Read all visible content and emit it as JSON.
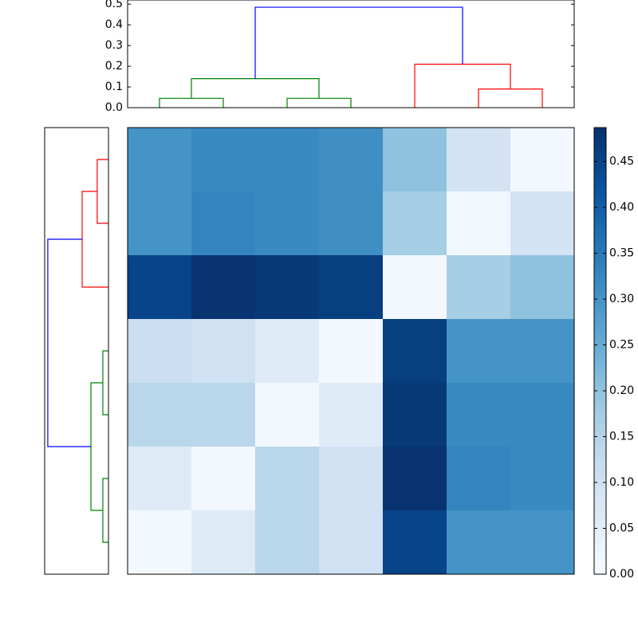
{
  "chart_data": [
    {
      "type": "dendrogram",
      "orientation": "top",
      "xlim": [
        0,
        70
      ],
      "ylim": [
        0,
        0.52
      ],
      "yticks": [
        {
          "value": 0,
          "label": "0.0"
        },
        0.1,
        0.2,
        0.3,
        0.4,
        0.5
      ],
      "links": [
        {
          "color": "#008000",
          "icoord": [
            5,
            5,
            15,
            15
          ],
          "dcoord": [
            0,
            0.045,
            0.045,
            0
          ]
        },
        {
          "color": "#008000",
          "icoord": [
            25,
            25,
            35,
            35
          ],
          "dcoord": [
            0,
            0.045,
            0.045,
            0
          ]
        },
        {
          "color": "#008000",
          "icoord": [
            10,
            10,
            30,
            30
          ],
          "dcoord": [
            0.045,
            0.14,
            0.14,
            0.045
          ]
        },
        {
          "color": "#ff0000",
          "icoord": [
            55,
            55,
            65,
            65
          ],
          "dcoord": [
            0,
            0.09,
            0.09,
            0
          ]
        },
        {
          "color": "#ff0000",
          "icoord": [
            45,
            45,
            60,
            60
          ],
          "dcoord": [
            0,
            0.21,
            0.21,
            0.09
          ]
        },
        {
          "color": "#0000ff",
          "icoord": [
            20,
            20,
            52.5,
            52.5
          ],
          "dcoord": [
            0.14,
            0.485,
            0.485,
            0.21
          ]
        }
      ]
    },
    {
      "type": "dendrogram",
      "orientation": "left",
      "xlim": [
        0.51,
        0
      ],
      "ylim": [
        70,
        0
      ],
      "links": [
        {
          "color": "#ff0000",
          "icoord": [
            5,
            5,
            15,
            15
          ],
          "dcoord": [
            0,
            0.09,
            0.09,
            0
          ]
        },
        {
          "color": "#ff0000",
          "icoord": [
            10,
            10,
            25,
            25
          ],
          "dcoord": [
            0.09,
            0.21,
            0.21,
            0
          ]
        },
        {
          "color": "#008000",
          "icoord": [
            35,
            35,
            45,
            45
          ],
          "dcoord": [
            0,
            0.045,
            0.045,
            0
          ]
        },
        {
          "color": "#008000",
          "icoord": [
            55,
            55,
            65,
            65
          ],
          "dcoord": [
            0,
            0.045,
            0.045,
            0
          ]
        },
        {
          "color": "#008000",
          "icoord": [
            40,
            40,
            60,
            60
          ],
          "dcoord": [
            0.045,
            0.14,
            0.14,
            0.045
          ]
        },
        {
          "color": "#0000ff",
          "icoord": [
            17.5,
            17.5,
            50,
            50
          ],
          "dcoord": [
            0.21,
            0.485,
            0.485,
            0.14
          ]
        }
      ]
    },
    {
      "type": "heatmap",
      "colormap": "Blues",
      "clim": [
        0,
        0.487
      ],
      "colorbar_ticks": [
        {
          "value": 0,
          "label": "0.00"
        },
        0.05,
        {
          "value": 0.1,
          "label": "0.10"
        },
        0.15,
        {
          "value": 0.2,
          "label": "0.20"
        },
        0.25,
        {
          "value": 0.3,
          "label": "0.30"
        },
        0.35,
        {
          "value": 0.4,
          "label": "0.40"
        },
        0.45
      ],
      "values": [
        [
          0.3,
          0.32,
          0.32,
          0.31,
          0.2,
          0.09,
          0.01
        ],
        [
          0.3,
          0.33,
          0.32,
          0.31,
          0.17,
          0.01,
          0.09
        ],
        [
          0.45,
          0.48,
          0.47,
          0.46,
          0.01,
          0.17,
          0.2
        ],
        [
          0.11,
          0.1,
          0.06,
          0.01,
          0.46,
          0.3,
          0.3
        ],
        [
          0.14,
          0.14,
          0.01,
          0.06,
          0.47,
          0.32,
          0.32
        ],
        [
          0.06,
          0.01,
          0.14,
          0.1,
          0.48,
          0.33,
          0.32
        ],
        [
          0.01,
          0.06,
          0.14,
          0.1,
          0.45,
          0.3,
          0.3
        ]
      ]
    }
  ]
}
